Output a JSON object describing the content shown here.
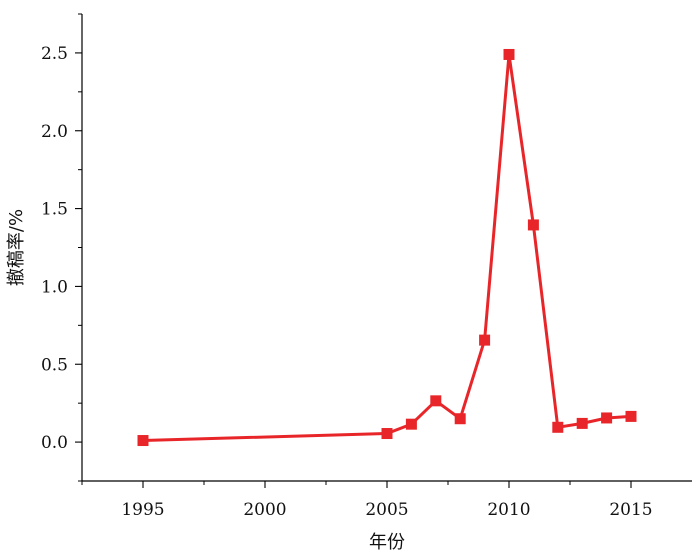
{
  "chart_data": {
    "type": "line",
    "title": "",
    "xlabel": "年份",
    "ylabel": "撤稿率/%",
    "xlim": [
      1992.5,
      2017.5
    ],
    "ylim": [
      -0.25,
      2.75
    ],
    "x_ticks": [
      1995,
      2000,
      2005,
      2010,
      2015
    ],
    "y_ticks": [
      0.0,
      0.5,
      1.0,
      1.5,
      2.0,
      2.5
    ],
    "x_tick_labels": [
      "1995",
      "2000",
      "2005",
      "2010",
      "2015"
    ],
    "y_tick_labels": [
      "0.0",
      "0.5",
      "1.0",
      "1.5",
      "2.0",
      "2.5"
    ],
    "grid": false,
    "legend": "none",
    "series": [
      {
        "color": "#e8262a",
        "marker": "square",
        "x": [
          1995,
          2005,
          2006,
          2007,
          2008,
          2009,
          2010,
          2011,
          2012,
          2013,
          2014,
          2015
        ],
        "values": [
          0.01,
          0.055,
          0.115,
          0.265,
          0.15,
          0.655,
          2.49,
          1.395,
          0.095,
          0.12,
          0.155,
          0.165
        ]
      }
    ]
  }
}
